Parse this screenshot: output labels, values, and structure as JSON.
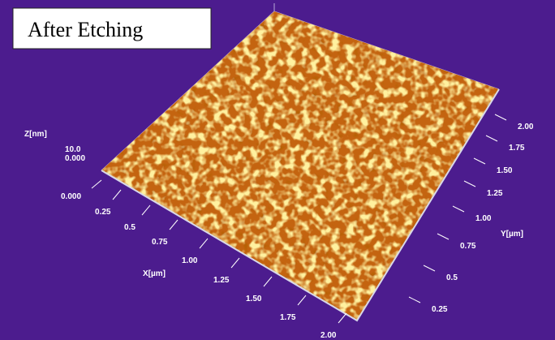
{
  "title": "After Etching",
  "z_axis": {
    "label": "Z[nm]",
    "top": "10.0",
    "zero_top": "0.000",
    "zero_bottom": "0.000"
  },
  "x_axis": {
    "label": "X[µm]",
    "ticks": [
      "0.25",
      "0.5",
      "0.75",
      "1.00",
      "1.25",
      "1.50",
      "1.75",
      "2.00"
    ]
  },
  "y_axis": {
    "label": "Y[µm]",
    "ticks": [
      "0.25",
      "0.5",
      "0.75",
      "1.00",
      "1.25",
      "1.50",
      "1.75",
      "2.00"
    ]
  }
}
